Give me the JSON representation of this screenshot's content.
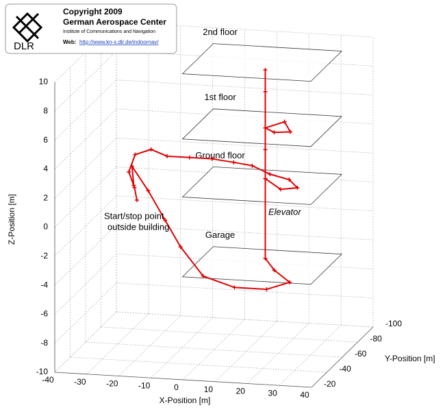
{
  "chart_data": {
    "type": "line3d",
    "copyright": "Copyright 2009",
    "organization": "German Aerospace Center",
    "institute": "Institute of Communications and Navigation",
    "web_label": "Web:",
    "web_url": "http://www.kn-s.dlr.de/indoornav/",
    "logo_text": "DLR",
    "xlabel": "X-Position [m]",
    "ylabel": "Y-Position [m]",
    "zlabel": "Z-Position [m]",
    "xlim": [
      -40,
      40
    ],
    "ylim": [
      -100,
      -20
    ],
    "zlim": [
      -10,
      10
    ],
    "xticks": [
      -40,
      -30,
      -20,
      -10,
      0,
      10,
      20,
      30,
      40
    ],
    "yticks": [
      -100,
      -80,
      -60,
      -40,
      -20
    ],
    "zticks": [
      -10,
      -8,
      -6,
      -4,
      -2,
      0,
      2,
      4,
      6,
      8,
      10
    ],
    "grid": true,
    "annotations": [
      "Start/stop point",
      "outside building",
      "Elevator"
    ],
    "floors": [
      {
        "name": "2nd floor",
        "z": 10,
        "x": [
          -5,
          35
        ],
        "y": [
          -80,
          -40
        ]
      },
      {
        "name": "1st floor",
        "z": 5.5,
        "x": [
          -5,
          35
        ],
        "y": [
          -80,
          -40
        ]
      },
      {
        "name": "Ground floor",
        "z": 1.5,
        "x": [
          -5,
          35
        ],
        "y": [
          -80,
          -40
        ]
      },
      {
        "name": "Garage",
        "z": -4,
        "x": [
          -5,
          35
        ],
        "y": [
          -80,
          -40
        ]
      }
    ],
    "series": [
      {
        "color": "#e00000",
        "x": [
          -24,
          -25,
          -27,
          -26,
          -22,
          -17,
          -10,
          -3,
          4,
          10,
          16,
          22,
          26,
          22,
          16,
          16,
          16,
          22,
          25,
          20,
          16,
          16,
          16,
          16,
          16,
          20,
          26,
          20,
          10,
          0,
          -8,
          -14,
          -20,
          -26,
          -25
        ],
        "y": [
          -60,
          -61,
          -62,
          -66,
          -70,
          -70,
          -70,
          -70,
          -69,
          -68,
          -66,
          -66,
          -60,
          -55,
          -60,
          -60,
          -60,
          -60,
          -55,
          -55,
          -60,
          -60,
          -60,
          -60,
          -60,
          -55,
          -50,
          -45,
          -45,
          -46,
          -50,
          -55,
          -58,
          -62,
          -60
        ],
        "z": [
          0,
          0.8,
          1.8,
          2.8,
          3.0,
          2.6,
          2.6,
          2.6,
          2.5,
          2.4,
          2.0,
          1.7,
          1.5,
          1.6,
          2.0,
          4.0,
          5.5,
          6.0,
          5.6,
          5.5,
          5.5,
          8.0,
          9.5,
          2.0,
          -3.5,
          -4.0,
          -4.5,
          -4.8,
          -4.8,
          -4.2,
          -2.5,
          -1.0,
          0.8,
          2.2,
          1.0
        ]
      }
    ]
  }
}
